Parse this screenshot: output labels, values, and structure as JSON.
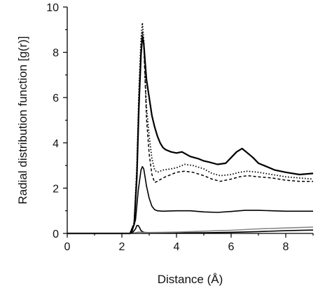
{
  "chart_data": {
    "type": "line",
    "title": "",
    "xlabel": "Distance (Å)",
    "ylabel": "Radial distribution function [g(r)]",
    "xlim": [
      0,
      9
    ],
    "ylim": [
      0,
      10
    ],
    "x_ticks": [
      0,
      2,
      4,
      6,
      8
    ],
    "y_ticks": [
      0,
      2,
      4,
      6,
      8,
      10
    ],
    "grid": false,
    "legend": "none",
    "series": [
      {
        "style": "solid-thick",
        "color": "#000000",
        "x": [
          0,
          2.3,
          2.45,
          2.55,
          2.62,
          2.7,
          2.75,
          2.8,
          2.85,
          2.9,
          3.0,
          3.1,
          3.2,
          3.3,
          3.4,
          3.5,
          3.6,
          3.8,
          4.0,
          4.2,
          4.5,
          4.8,
          5.0,
          5.2,
          5.5,
          5.8,
          6.0,
          6.2,
          6.4,
          6.6,
          6.8,
          7.0,
          7.3,
          7.6,
          8.0,
          8.5,
          9.0
        ],
        "y": [
          0,
          0,
          0.4,
          2.5,
          5.5,
          7.9,
          8.7,
          8.4,
          7.6,
          6.8,
          6.0,
          5.2,
          4.7,
          4.3,
          4.0,
          3.8,
          3.7,
          3.6,
          3.55,
          3.6,
          3.4,
          3.3,
          3.2,
          3.15,
          3.05,
          3.1,
          3.35,
          3.6,
          3.75,
          3.55,
          3.35,
          3.1,
          2.95,
          2.8,
          2.7,
          2.6,
          2.65
        ]
      },
      {
        "style": "dotted",
        "color": "#000000",
        "x": [
          0,
          2.3,
          2.45,
          2.55,
          2.62,
          2.7,
          2.75,
          2.8,
          2.85,
          2.9,
          3.0,
          3.1,
          3.2,
          3.3,
          3.5,
          3.8,
          4.0,
          4.3,
          4.6,
          5.0,
          5.3,
          5.6,
          6.0,
          6.3,
          6.6,
          7.0,
          7.5,
          8.0,
          8.5,
          9.0
        ],
        "y": [
          0,
          0,
          0.5,
          3.0,
          6.2,
          8.6,
          9.3,
          8.6,
          7.0,
          5.6,
          4.3,
          3.3,
          2.8,
          2.7,
          2.8,
          2.85,
          2.9,
          3.05,
          3.0,
          2.85,
          2.65,
          2.55,
          2.6,
          2.7,
          2.75,
          2.7,
          2.6,
          2.5,
          2.45,
          2.4
        ]
      },
      {
        "style": "dashed",
        "color": "#000000",
        "x": [
          0,
          2.3,
          2.45,
          2.55,
          2.62,
          2.7,
          2.75,
          2.8,
          2.85,
          2.9,
          3.0,
          3.1,
          3.2,
          3.3,
          3.5,
          3.8,
          4.0,
          4.3,
          4.6,
          5.0,
          5.3,
          5.6,
          6.0,
          6.3,
          6.6,
          7.0,
          7.5,
          8.0,
          8.5,
          9.0
        ],
        "y": [
          0,
          0,
          0.45,
          2.8,
          5.9,
          8.2,
          8.9,
          8.4,
          6.8,
          5.1,
          3.5,
          2.6,
          2.25,
          2.3,
          2.45,
          2.6,
          2.7,
          2.75,
          2.7,
          2.55,
          2.4,
          2.3,
          2.4,
          2.5,
          2.55,
          2.5,
          2.45,
          2.35,
          2.3,
          2.3
        ]
      },
      {
        "style": "solid",
        "color": "#000000",
        "x": [
          0,
          2.35,
          2.5,
          2.6,
          2.7,
          2.75,
          2.8,
          2.85,
          2.9,
          3.0,
          3.1,
          3.2,
          3.3,
          3.5,
          4.0,
          4.5,
          5.0,
          5.5,
          6.0,
          6.5,
          7.0,
          7.5,
          8.0,
          8.5,
          9.0
        ],
        "y": [
          0,
          0,
          0.6,
          1.9,
          2.8,
          2.95,
          2.85,
          2.5,
          2.1,
          1.55,
          1.2,
          1.05,
          1.0,
          0.98,
          1.0,
          1.0,
          0.95,
          0.93,
          0.97,
          1.02,
          1.02,
          1.0,
          0.98,
          0.98,
          0.98
        ]
      },
      {
        "style": "solid",
        "color": "#000000",
        "x": [
          0,
          2.3,
          2.4,
          2.5,
          2.55,
          2.6,
          2.65,
          2.7,
          2.8,
          3.0,
          3.5,
          4.0,
          5.0,
          6.0,
          7.0,
          8.0,
          9.0
        ],
        "y": [
          0,
          0,
          0.05,
          0.2,
          0.35,
          0.35,
          0.25,
          0.12,
          0.05,
          0.03,
          0.02,
          0.03,
          0.03,
          0.05,
          0.08,
          0.12,
          0.15
        ]
      },
      {
        "style": "solid",
        "color": "#888888",
        "x": [
          0,
          2.35,
          2.5,
          2.6,
          2.7,
          2.8,
          3.0,
          3.5,
          4.0,
          4.5,
          5.0,
          5.5,
          6.0,
          6.5,
          7.0,
          7.5,
          8.0,
          8.5,
          9.0
        ],
        "y": [
          0,
          0,
          0.03,
          0.06,
          0.05,
          0.04,
          0.04,
          0.05,
          0.06,
          0.08,
          0.1,
          0.12,
          0.14,
          0.17,
          0.2,
          0.22,
          0.24,
          0.26,
          0.28
        ]
      }
    ]
  }
}
